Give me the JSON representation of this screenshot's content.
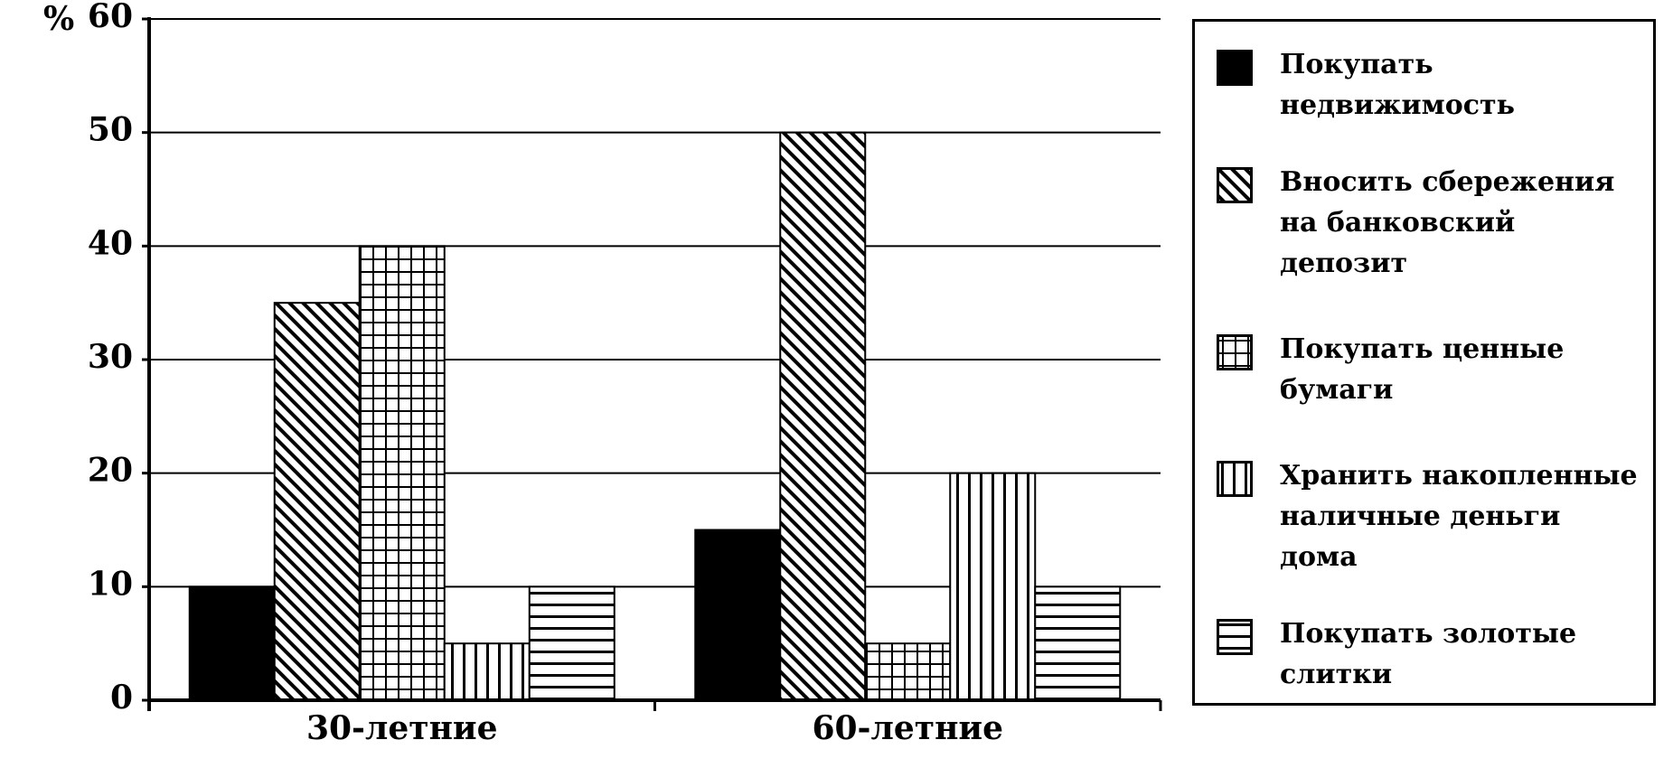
{
  "chart_data": {
    "type": "bar",
    "y_label": "%",
    "categories": [
      "30-летние",
      "60-летние"
    ],
    "series": [
      {
        "name": "Покупать недвижимость",
        "color": "#000000",
        "pattern": "solid",
        "values": [
          10,
          15
        ]
      },
      {
        "name": "Вносить сбережения на банковский депозит",
        "color": "#000000",
        "pattern": "diagonal",
        "values": [
          35,
          50
        ]
      },
      {
        "name": "Покупать ценные бумаги",
        "color": "#000000",
        "pattern": "grid",
        "values": [
          40,
          5
        ]
      },
      {
        "name": "Хранить накопленные наличные деньги дома",
        "color": "#000000",
        "pattern": "vertical",
        "values": [
          5,
          20
        ]
      },
      {
        "name": "Покупать золотые слитки",
        "color": "#000000",
        "pattern": "horizontal",
        "values": [
          10,
          10
        ]
      }
    ],
    "ylim": [
      0,
      60
    ],
    "yticks": [
      0,
      10,
      20,
      30,
      40,
      50,
      60
    ],
    "grid": true,
    "legend": "right"
  }
}
